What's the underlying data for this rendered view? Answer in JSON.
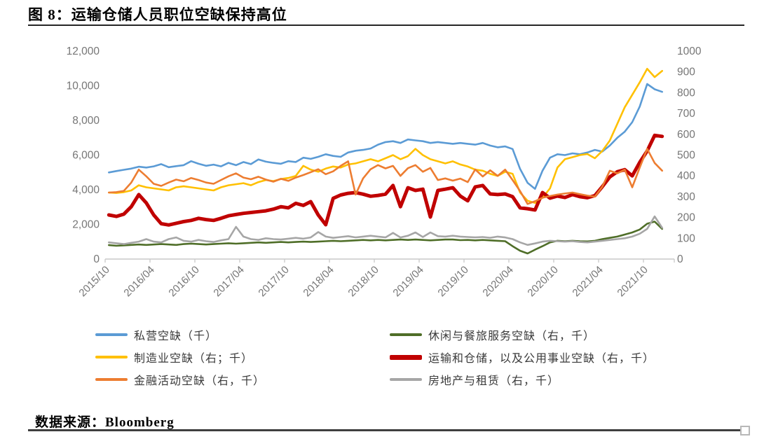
{
  "title": "图 8：运输仓储人员职位空缺保持高位",
  "source": "数据来源：Bloomberg",
  "colors": {
    "blue": "#5B9BD5",
    "gold": "#FFC000",
    "orange": "#ED7D31",
    "dark_green": "#4F6E28",
    "dark_red": "#C00000",
    "gray": "#A6A6A6",
    "axis_text": "#767676",
    "axis_line": "#C9C9C9",
    "rule": "#262626"
  },
  "chart_data": {
    "type": "line",
    "title": "图 8：运输仓储人员职位空缺保持高位",
    "x_start": "2015/10",
    "x_end": "2021/12",
    "frequency": "monthly",
    "months_per_label": 6,
    "x_labels": [
      "2015/10",
      "2016/04",
      "2016/10",
      "2017/04",
      "2017/10",
      "2018/04",
      "2018/10",
      "2019/04",
      "2019/10",
      "2020/04",
      "2020/10",
      "2021/04",
      "2021/10"
    ],
    "left_axis": {
      "min": 0,
      "max": 12000,
      "ticks": [
        "0",
        "2,000",
        "4,000",
        "6,000",
        "8,000",
        "10,000",
        "12,000"
      ]
    },
    "right_axis": {
      "min": 0,
      "max": 1000,
      "ticks": [
        "0",
        "100",
        "200",
        "300",
        "400",
        "500",
        "600",
        "700",
        "800",
        "900",
        "1000"
      ]
    },
    "grid": "off",
    "legend_position": "bottom-two-columns",
    "series": [
      {
        "name": "私营空缺（千）",
        "axis": "left",
        "color": "#5B9BD5",
        "stroke_width": 2.6,
        "values": [
          5000,
          5080,
          5150,
          5220,
          5330,
          5280,
          5350,
          5480,
          5300,
          5360,
          5420,
          5650,
          5500,
          5380,
          5450,
          5350,
          5550,
          5420,
          5600,
          5480,
          5750,
          5620,
          5550,
          5500,
          5650,
          5600,
          5850,
          5780,
          5900,
          6050,
          5950,
          5900,
          6150,
          6250,
          6300,
          6380,
          6600,
          6750,
          6800,
          6700,
          6900,
          6850,
          6800,
          6700,
          6750,
          6700,
          6650,
          6700,
          6650,
          6600,
          6700,
          6550,
          6450,
          6500,
          6350,
          5200,
          4400,
          4050,
          5100,
          5850,
          6050,
          6000,
          6100,
          6050,
          6150,
          6300,
          6200,
          6550,
          7000,
          7350,
          7900,
          8800,
          10100,
          9800,
          9650
        ]
      },
      {
        "name": "制造业空缺（右；千）",
        "axis": "right",
        "color": "#FFC000",
        "stroke_width": 2.6,
        "values": [
          320,
          318,
          322,
          330,
          355,
          345,
          340,
          335,
          330,
          345,
          350,
          345,
          340,
          335,
          330,
          345,
          355,
          360,
          365,
          355,
          370,
          380,
          375,
          385,
          390,
          400,
          448,
          430,
          420,
          435,
          445,
          440,
          455,
          460,
          470,
          480,
          470,
          485,
          500,
          480,
          495,
          530,
          500,
          480,
          470,
          460,
          470,
          455,
          445,
          430,
          425,
          410,
          400,
          420,
          410,
          320,
          280,
          270,
          295,
          340,
          440,
          480,
          490,
          500,
          505,
          485,
          520,
          570,
          650,
          730,
          790,
          850,
          915,
          875,
          905
        ]
      },
      {
        "name": "金融活动空缺（右，千）",
        "axis": "right",
        "color": "#ED7D31",
        "stroke_width": 2.6,
        "values": [
          320,
          322,
          328,
          368,
          430,
          398,
          362,
          352,
          368,
          382,
          374,
          390,
          380,
          368,
          362,
          380,
          398,
          412,
          392,
          384,
          396,
          382,
          372,
          386,
          376,
          392,
          404,
          418,
          432,
          408,
          422,
          448,
          470,
          310,
          388,
          432,
          452,
          436,
          448,
          400,
          437,
          452,
          420,
          438,
          380,
          388,
          377,
          387,
          370,
          431,
          397,
          427,
          400,
          430,
          380,
          327,
          265,
          278,
          295,
          303,
          310,
          315,
          320,
          312,
          305,
          300,
          348,
          425,
          412,
          430,
          345,
          440,
          530,
          462,
          425
        ]
      },
      {
        "name": "休闲与餐旅服务空缺（右，千）",
        "axis": "right",
        "color": "#4F6E28",
        "stroke_width": 2.6,
        "values": [
          67,
          64,
          66,
          68,
          70,
          68,
          70,
          72,
          70,
          68,
          72,
          74,
          72,
          70,
          72,
          74,
          76,
          74,
          76,
          78,
          80,
          78,
          80,
          82,
          80,
          82,
          84,
          82,
          84,
          86,
          88,
          86,
          88,
          90,
          92,
          90,
          92,
          90,
          92,
          94,
          92,
          94,
          92,
          90,
          92,
          94,
          94,
          91,
          92,
          90,
          92,
          90,
          88,
          86,
          62,
          40,
          27,
          45,
          62,
          80,
          88,
          86,
          88,
          86,
          85,
          88,
          96,
          102,
          108,
          118,
          128,
          142,
          170,
          180,
          145
        ]
      },
      {
        "name": "运输和仓储，以及公用事业空缺（右，千）",
        "axis": "right",
        "color": "#C00000",
        "stroke_width": 5,
        "values": [
          212,
          205,
          216,
          252,
          310,
          270,
          212,
          170,
          164,
          172,
          180,
          186,
          196,
          190,
          186,
          196,
          208,
          214,
          220,
          224,
          228,
          232,
          240,
          252,
          246,
          268,
          258,
          276,
          212,
          165,
          292,
          308,
          316,
          320,
          312,
          302,
          306,
          312,
          354,
          252,
          343,
          330,
          336,
          202,
          330,
          336,
          343,
          303,
          280,
          347,
          354,
          313,
          310,
          313,
          300,
          246,
          242,
          236,
          320,
          293,
          303,
          296,
          310,
          300,
          295,
          305,
          348,
          395,
          420,
          430,
          400,
          465,
          520,
          595,
          590
        ]
      },
      {
        "name": "房地产与租赁（右，千）",
        "axis": "right",
        "color": "#A6A6A6",
        "stroke_width": 2.6,
        "values": [
          80,
          76,
          72,
          78,
          84,
          96,
          84,
          80,
          96,
          104,
          88,
          84,
          92,
          86,
          82,
          90,
          96,
          155,
          108,
          96,
          92,
          100,
          96,
          94,
          98,
          102,
          98,
          104,
          130,
          108,
          102,
          106,
          110,
          104,
          108,
          112,
          108,
          104,
          126,
          104,
          112,
          128,
          106,
          128,
          110,
          108,
          112,
          108,
          106,
          104,
          106,
          102,
          108,
          104,
          96,
          80,
          68,
          75,
          84,
          88,
          86,
          84,
          86,
          82,
          80,
          84,
          88,
          92,
          96,
          100,
          108,
          122,
          145,
          205,
          150
        ]
      }
    ]
  }
}
